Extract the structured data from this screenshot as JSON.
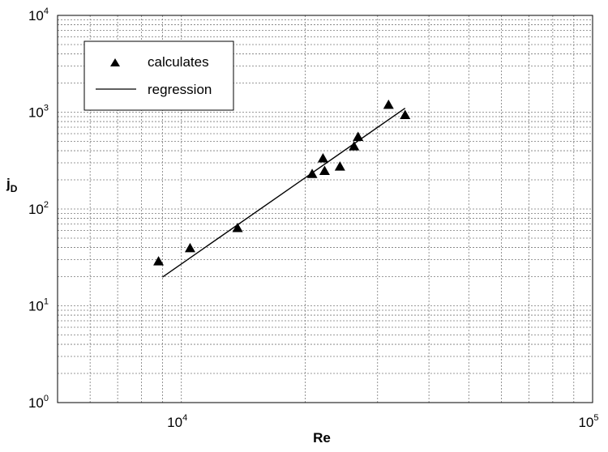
{
  "chart_data": {
    "type": "scatter",
    "title": "",
    "xlabel": "Re",
    "ylabel_main": "j",
    "ylabel_sub": "D",
    "x_scale": "log",
    "y_scale": "log",
    "xlim": [
      5000,
      100000
    ],
    "ylim": [
      1,
      10000
    ],
    "grid": true,
    "legend_position": "top-left",
    "x_ticks": [
      {
        "value": 10000,
        "base": "10",
        "exp": "4"
      },
      {
        "value": 100000,
        "base": "10",
        "exp": "5"
      }
    ],
    "y_ticks": [
      {
        "value": 1,
        "base": "10",
        "exp": "0"
      },
      {
        "value": 10,
        "base": "10",
        "exp": "1"
      },
      {
        "value": 100,
        "base": "10",
        "exp": "2"
      },
      {
        "value": 1000,
        "base": "10",
        "exp": "3"
      },
      {
        "value": 10000,
        "base": "10",
        "exp": "4"
      }
    ],
    "series": [
      {
        "name": "calculates",
        "kind": "scatter",
        "marker": "triangle",
        "color": "#000000",
        "points": [
          {
            "x": 8800,
            "y": 28.5
          },
          {
            "x": 10500,
            "y": 39
          },
          {
            "x": 13700,
            "y": 63
          },
          {
            "x": 20800,
            "y": 228
          },
          {
            "x": 22100,
            "y": 330
          },
          {
            "x": 22300,
            "y": 245
          },
          {
            "x": 24300,
            "y": 272
          },
          {
            "x": 26300,
            "y": 440
          },
          {
            "x": 26900,
            "y": 550
          },
          {
            "x": 31900,
            "y": 1180
          },
          {
            "x": 35000,
            "y": 925
          }
        ]
      },
      {
        "name": "regression",
        "kind": "line",
        "color": "#000000",
        "points": [
          {
            "x": 9000,
            "y": 19.8
          },
          {
            "x": 35000,
            "y": 1100
          }
        ]
      }
    ]
  }
}
